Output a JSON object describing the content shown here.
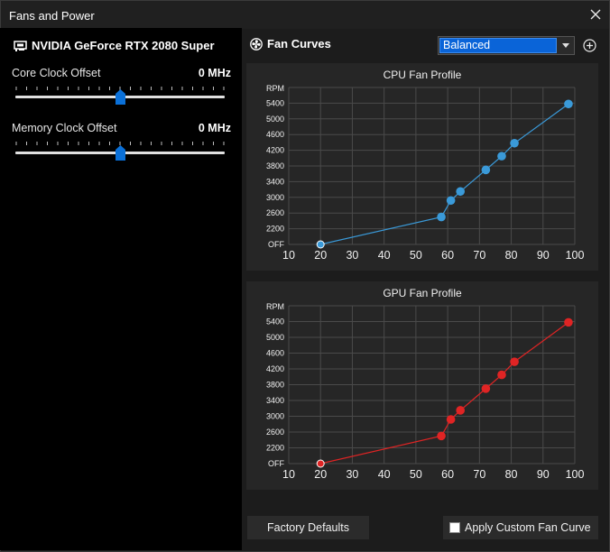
{
  "window": {
    "title": "Fans and Power"
  },
  "gpu": {
    "name": "NVIDIA GeForce RTX 2080 Super",
    "icon": "gpu-card-icon"
  },
  "sliders": [
    {
      "label": "Core Clock Offset",
      "value": "0 MHz",
      "position": 0.5
    },
    {
      "label": "Memory Clock Offset",
      "value": "0 MHz",
      "position": 0.5
    }
  ],
  "fan_curves": {
    "label": "Fan Curves",
    "icon": "fan-icon",
    "profile": "Balanced",
    "add_icon": "plus-circle-icon"
  },
  "chart_data": [
    {
      "type": "line",
      "title": "CPU Fan Profile",
      "ylabel": "RPM",
      "xlim": [
        10,
        100
      ],
      "x_ticks": [
        10,
        20,
        30,
        40,
        50,
        60,
        70,
        80,
        90,
        100
      ],
      "y_ticks": [
        "OFF",
        "2200",
        "2600",
        "3000",
        "3400",
        "3800",
        "4200",
        "4600",
        "5000",
        "5400"
      ],
      "x": [
        20,
        58,
        61,
        64,
        72,
        77,
        81,
        98
      ],
      "y": [
        1800,
        2500,
        2920,
        3150,
        3700,
        4050,
        4380,
        5380
      ],
      "color": "#3a9ad9",
      "grid": true
    },
    {
      "type": "line",
      "title": "GPU Fan Profile",
      "ylabel": "RPM",
      "xlim": [
        10,
        100
      ],
      "x_ticks": [
        10,
        20,
        30,
        40,
        50,
        60,
        70,
        80,
        90,
        100
      ],
      "y_ticks": [
        "OFF",
        "2200",
        "2600",
        "3000",
        "3400",
        "3800",
        "4200",
        "4600",
        "5000",
        "5400"
      ],
      "x": [
        20,
        58,
        61,
        64,
        72,
        77,
        81,
        98
      ],
      "y": [
        1800,
        2500,
        2920,
        3150,
        3700,
        4050,
        4380,
        5380
      ],
      "color": "#e02424",
      "grid": true
    }
  ],
  "buttons": {
    "factory_defaults": "Factory Defaults",
    "apply_custom": "Apply Custom Fan Curve"
  }
}
